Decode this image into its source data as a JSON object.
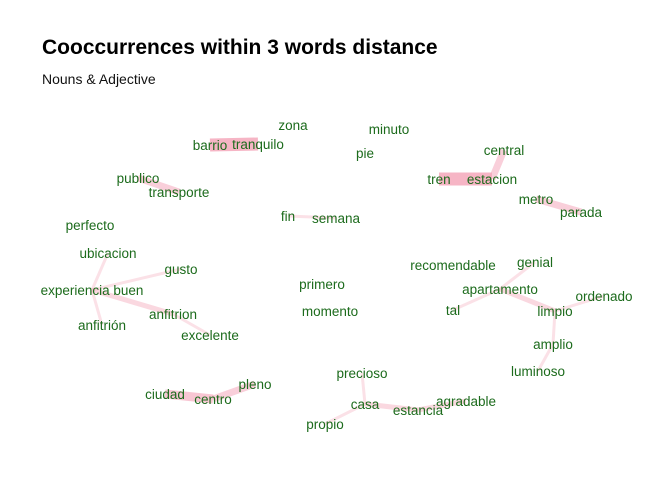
{
  "title": "Cooccurrences within 3 words distance",
  "subtitle": "Nouns & Adjective",
  "edge_color": "#f4a8bb",
  "word_color": "#1c6b1c",
  "chart_data": {
    "type": "network",
    "nodes": [
      "zona",
      "minuto",
      "barrio",
      "tranquilo",
      "pie",
      "central",
      "tren",
      "estacion",
      "publico",
      "transporte",
      "metro",
      "parada",
      "fin",
      "semana",
      "perfecto",
      "ubicacion",
      "gusto",
      "recomendable",
      "genial",
      "experiencia buen",
      "primero",
      "apartamento",
      "ordenado",
      "anfitrion",
      "tal",
      "limpio",
      "anfitrión",
      "momento",
      "excelente",
      "amplio",
      "precioso",
      "luminoso",
      "pleno",
      "ciudad",
      "centro",
      "agradable",
      "casa",
      "estancia",
      "propio"
    ],
    "edges": [
      {
        "source": "barrio",
        "target": "tranquilo",
        "weight": 6
      },
      {
        "source": "tren",
        "target": "estacion",
        "weight": 6
      },
      {
        "source": "estacion",
        "target": "central",
        "weight": 3
      },
      {
        "source": "publico",
        "target": "transporte",
        "weight": 3
      },
      {
        "source": "metro",
        "target": "parada",
        "weight": 3
      },
      {
        "source": "ciudad",
        "target": "centro",
        "weight": 4
      },
      {
        "source": "centro",
        "target": "pleno",
        "weight": 3
      },
      {
        "source": "casa",
        "target": "estancia",
        "weight": 2
      },
      {
        "source": "estancia",
        "target": "agradable",
        "weight": 2
      },
      {
        "source": "casa",
        "target": "precioso",
        "weight": 1
      },
      {
        "source": "casa",
        "target": "propio",
        "weight": 1
      },
      {
        "source": "apartamento",
        "target": "limpio",
        "weight": 2
      },
      {
        "source": "limpio",
        "target": "amplio",
        "weight": 1
      },
      {
        "source": "amplio",
        "target": "luminoso",
        "weight": 1
      },
      {
        "source": "limpio",
        "target": "ordenado",
        "weight": 1
      },
      {
        "source": "apartamento",
        "target": "genial",
        "weight": 1
      },
      {
        "source": "apartamento",
        "target": "tal",
        "weight": 1
      },
      {
        "source": "ubicacion",
        "target": "experiencia buen",
        "weight": 1
      },
      {
        "source": "experiencia buen",
        "target": "anfitrion",
        "weight": 2
      },
      {
        "source": "anfitrion",
        "target": "excelente",
        "weight": 1
      },
      {
        "source": "experiencia buen",
        "target": "anfitrión",
        "weight": 1
      },
      {
        "source": "gusto",
        "target": "experiencia buen",
        "weight": 1
      },
      {
        "source": "fin",
        "target": "semana",
        "weight": 1
      }
    ]
  }
}
